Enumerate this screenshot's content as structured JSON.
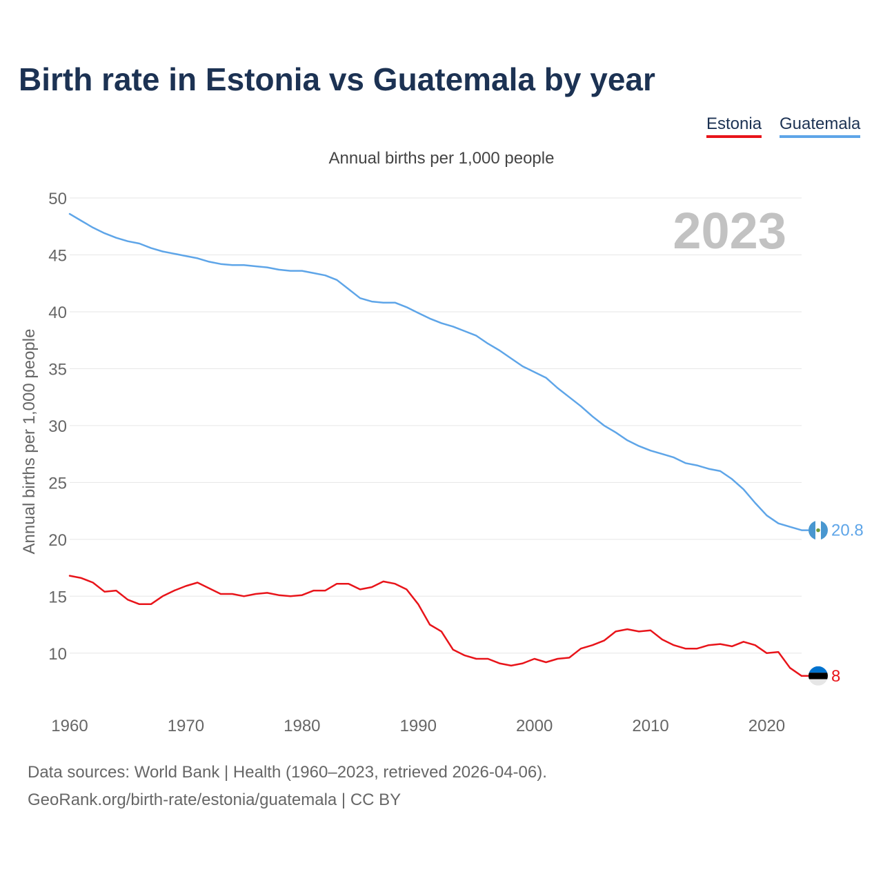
{
  "title": "Birth rate in Estonia vs Guatemala by year",
  "legend": [
    {
      "name": "Estonia",
      "color": "#e8141a"
    },
    {
      "name": "Guatemala",
      "color": "#5ea5e8"
    }
  ],
  "footer": {
    "line1": "Data sources: World Bank | Health (1960–2023, retrieved 2026-04-06).",
    "line2": "GeoRank.org/birth-rate/estonia/guatemala | CC BY"
  },
  "chart_data": {
    "type": "line",
    "title": "Birth rate in Estonia vs Guatemala by year",
    "subtitle": "Annual births per 1,000 people",
    "ylabel": "Annual births per 1,000 people",
    "xlabel": "",
    "year_label": "2023",
    "xlim": [
      1960,
      2023
    ],
    "ylim": [
      5.5,
      50
    ],
    "x_ticks": [
      1960,
      1970,
      1980,
      1990,
      2000,
      2010,
      2020
    ],
    "y_ticks": [
      10,
      15,
      20,
      25,
      30,
      35,
      40,
      45,
      50
    ],
    "grid": true,
    "legend_position": "top-right",
    "x": [
      1960,
      1961,
      1962,
      1963,
      1964,
      1965,
      1966,
      1967,
      1968,
      1969,
      1970,
      1971,
      1972,
      1973,
      1974,
      1975,
      1976,
      1977,
      1978,
      1979,
      1980,
      1981,
      1982,
      1983,
      1984,
      1985,
      1986,
      1987,
      1988,
      1989,
      1990,
      1991,
      1992,
      1993,
      1994,
      1995,
      1996,
      1997,
      1998,
      1999,
      2000,
      2001,
      2002,
      2003,
      2004,
      2005,
      2006,
      2007,
      2008,
      2009,
      2010,
      2011,
      2012,
      2013,
      2014,
      2015,
      2016,
      2017,
      2018,
      2019,
      2020,
      2021,
      2022,
      2023
    ],
    "series": [
      {
        "name": "Guatemala",
        "color": "#5ea5e8",
        "end_label": "20.8",
        "values": [
          48.6,
          48.0,
          47.4,
          46.9,
          46.5,
          46.2,
          46.0,
          45.6,
          45.3,
          45.1,
          44.9,
          44.7,
          44.4,
          44.2,
          44.1,
          44.1,
          44.0,
          43.9,
          43.7,
          43.6,
          43.6,
          43.4,
          43.2,
          42.8,
          42.0,
          41.2,
          40.9,
          40.8,
          40.8,
          40.4,
          39.9,
          39.4,
          39.0,
          38.7,
          38.3,
          37.9,
          37.2,
          36.6,
          35.9,
          35.2,
          34.7,
          34.2,
          33.3,
          32.5,
          31.7,
          30.8,
          30.0,
          29.4,
          28.7,
          28.2,
          27.8,
          27.5,
          27.2,
          26.7,
          26.5,
          26.2,
          26.0,
          25.3,
          24.4,
          23.2,
          22.1,
          21.4,
          21.1,
          20.8
        ]
      },
      {
        "name": "Estonia",
        "color": "#e8141a",
        "end_label": "8",
        "values": [
          16.8,
          16.6,
          16.2,
          15.4,
          15.5,
          14.7,
          14.3,
          14.3,
          15.0,
          15.5,
          15.9,
          16.2,
          15.7,
          15.2,
          15.2,
          15.0,
          15.2,
          15.3,
          15.1,
          15.0,
          15.1,
          15.5,
          15.5,
          16.1,
          16.1,
          15.6,
          15.8,
          16.3,
          16.1,
          15.6,
          14.3,
          12.5,
          11.9,
          10.3,
          9.8,
          9.5,
          9.5,
          9.1,
          8.9,
          9.1,
          9.5,
          9.2,
          9.5,
          9.6,
          10.4,
          10.7,
          11.1,
          11.9,
          12.1,
          11.9,
          12.0,
          11.2,
          10.7,
          10.4,
          10.4,
          10.7,
          10.8,
          10.6,
          11.0,
          10.7,
          10.0,
          10.1,
          8.7,
          8.0
        ]
      }
    ]
  }
}
